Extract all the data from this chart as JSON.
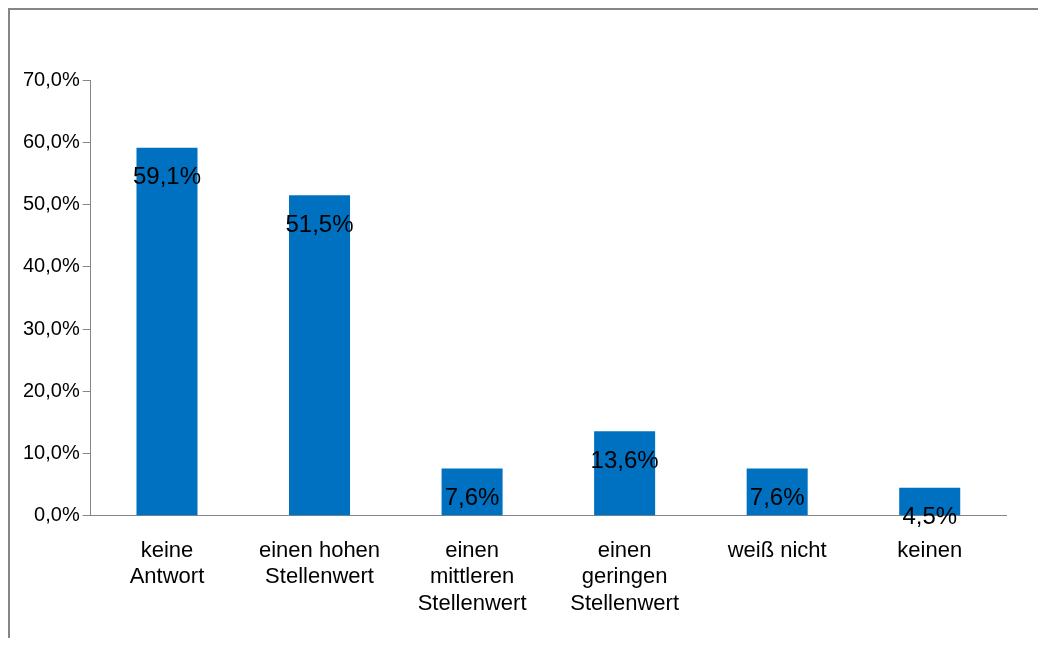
{
  "chart_data": {
    "type": "bar",
    "categories": [
      "keine Antwort",
      "einen hohen Stellenwert",
      "einen mittleren Stellenwert",
      "einen geringen Stellenwert",
      "weiß nicht",
      "keinen"
    ],
    "values": [
      59.1,
      51.5,
      7.6,
      13.6,
      7.6,
      4.5
    ],
    "color": "#0070c0",
    "value_labels": [
      "59,1%",
      "51,5%",
      "7,6%",
      "13,6%",
      "7,6%",
      "4,5%"
    ],
    "ylim": [
      0,
      70
    ],
    "yticks": [
      {
        "value": 0,
        "label": "0,0%"
      },
      {
        "value": 10,
        "label": "10,0%"
      },
      {
        "value": 20,
        "label": "20,0%"
      },
      {
        "value": 30,
        "label": "30,0%"
      },
      {
        "value": 40,
        "label": "40,0%"
      },
      {
        "value": 50,
        "label": "50,0%"
      },
      {
        "value": 60,
        "label": "60,0%"
      },
      {
        "value": 70,
        "label": "70,0%"
      }
    ],
    "grid": false,
    "legend": false
  }
}
